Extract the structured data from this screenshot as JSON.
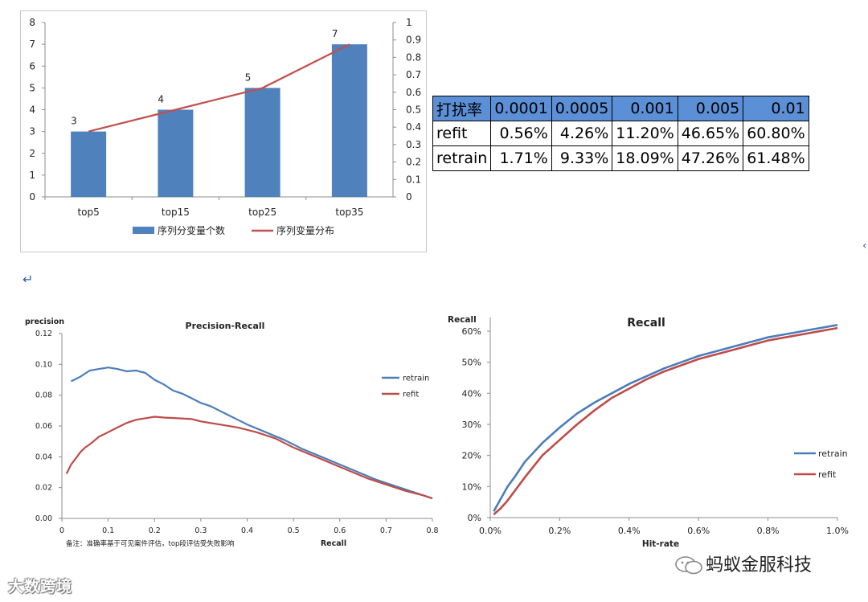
{
  "chart_data": [
    {
      "type": "bar+line",
      "categories": [
        "top5",
        "top15",
        "top25",
        "top35"
      ],
      "series": [
        {
          "name": "序列分变量个数",
          "type": "bar",
          "axis": "left",
          "values": [
            3,
            4,
            5,
            7
          ],
          "color": "#4f81bd"
        },
        {
          "name": "序列变量分布",
          "type": "line",
          "axis": "right",
          "values": [
            0.375,
            0.5,
            0.625,
            0.875
          ],
          "color": "#c0504d"
        }
      ],
      "data_labels": [
        "3",
        "4",
        "5",
        "7"
      ],
      "ylim_left": [
        0,
        8
      ],
      "ytick_labels_left": [
        "0",
        "1",
        "2",
        "3",
        "4",
        "5",
        "6",
        "7",
        "8"
      ],
      "ylim_right": [
        0,
        1
      ],
      "ytick_labels_right": [
        "0",
        "0.1",
        "0.2",
        "0.3",
        "0.4",
        "0.5",
        "0.6",
        "0.7",
        "0.8",
        "0.9",
        "1"
      ],
      "legend": "bottom"
    },
    {
      "type": "line",
      "title": "Precision-Recall",
      "xlabel": "Recall",
      "ylabel": "precision",
      "xlim": [
        0,
        0.8
      ],
      "ylim": [
        0,
        0.12
      ],
      "xtick_labels": [
        "0",
        "0.1",
        "0.2",
        "0.3",
        "0.4",
        "0.5",
        "0.6",
        "0.7",
        "0.8"
      ],
      "ytick_labels": [
        "0.00",
        "0.02",
        "0.04",
        "0.06",
        "0.08",
        "0.10",
        "0.12"
      ],
      "note": "备注：准确率基于可见案件评估，top段评估受失败影响",
      "legend": "right",
      "series": [
        {
          "name": "retrain",
          "color": "#4a7ebb",
          "x": [
            0.02,
            0.04,
            0.06,
            0.08,
            0.1,
            0.12,
            0.14,
            0.16,
            0.18,
            0.2,
            0.22,
            0.24,
            0.26,
            0.28,
            0.3,
            0.32,
            0.34,
            0.36,
            0.38,
            0.4,
            0.44,
            0.48,
            0.52,
            0.56,
            0.6,
            0.64,
            0.68,
            0.72,
            0.76,
            0.8
          ],
          "y": [
            0.089,
            0.092,
            0.096,
            0.097,
            0.098,
            0.097,
            0.0955,
            0.096,
            0.0945,
            0.09,
            0.087,
            0.083,
            0.081,
            0.078,
            0.075,
            0.073,
            0.07,
            0.067,
            0.064,
            0.061,
            0.056,
            0.051,
            0.045,
            0.04,
            0.035,
            0.03,
            0.025,
            0.021,
            0.017,
            0.013
          ]
        },
        {
          "name": "refit",
          "color": "#be4b48",
          "x": [
            0.01,
            0.02,
            0.03,
            0.04,
            0.05,
            0.06,
            0.08,
            0.1,
            0.12,
            0.14,
            0.16,
            0.18,
            0.2,
            0.22,
            0.25,
            0.28,
            0.3,
            0.34,
            0.38,
            0.42,
            0.46,
            0.5,
            0.54,
            0.58,
            0.62,
            0.66,
            0.7,
            0.74,
            0.78,
            0.8
          ],
          "y": [
            0.029,
            0.035,
            0.039,
            0.043,
            0.046,
            0.048,
            0.053,
            0.056,
            0.059,
            0.062,
            0.064,
            0.065,
            0.066,
            0.0655,
            0.065,
            0.0645,
            0.063,
            0.061,
            0.059,
            0.056,
            0.052,
            0.046,
            0.041,
            0.036,
            0.031,
            0.026,
            0.022,
            0.018,
            0.015,
            0.013
          ]
        }
      ]
    },
    {
      "type": "line",
      "title": "Recall",
      "xlabel": "Hit-rate",
      "ylabel": "Recall",
      "xlim": [
        0,
        1
      ],
      "ylim": [
        0,
        60
      ],
      "xtick_labels": [
        "0.0%",
        "0.2%",
        "0.4%",
        "0.6%",
        "0.8%",
        "1.0%"
      ],
      "ytick_labels": [
        "0%",
        "10%",
        "20%",
        "30%",
        "40%",
        "50%",
        "60%"
      ],
      "legend": "right",
      "series": [
        {
          "name": "retrain",
          "color": "#4a7ebb",
          "x": [
            0.01,
            0.03,
            0.05,
            0.07,
            0.1,
            0.15,
            0.2,
            0.25,
            0.3,
            0.35,
            0.4,
            0.45,
            0.5,
            0.55,
            0.6,
            0.65,
            0.7,
            0.75,
            0.8,
            0.85,
            0.9,
            0.95,
            1.0
          ],
          "y": [
            2,
            6,
            10,
            13,
            18,
            24,
            29,
            33.5,
            37,
            40,
            43,
            45.5,
            48,
            50,
            52,
            53.5,
            55,
            56.5,
            58,
            59,
            60,
            61,
            62
          ]
        },
        {
          "name": "refit",
          "color": "#be4b48",
          "x": [
            0.01,
            0.03,
            0.05,
            0.07,
            0.1,
            0.15,
            0.2,
            0.25,
            0.3,
            0.35,
            0.4,
            0.45,
            0.5,
            0.55,
            0.6,
            0.65,
            0.7,
            0.75,
            0.8,
            0.85,
            0.9,
            0.95,
            1.0
          ],
          "y": [
            1,
            3,
            5.5,
            8.5,
            13,
            20,
            25,
            30,
            34.5,
            38.5,
            41.5,
            44.5,
            47,
            49,
            51,
            52.5,
            54,
            55.5,
            57,
            58,
            59,
            60,
            61
          ]
        }
      ]
    }
  ],
  "table": {
    "header": [
      "打扰率",
      "0.0001",
      "0.0005",
      "0.001",
      "0.005",
      "0.01"
    ],
    "rows": [
      [
        "refit",
        "0.56%",
        "4.26%",
        "11.20%",
        "46.65%",
        "60.80%"
      ],
      [
        "retrain",
        "1.71%",
        "9.33%",
        "18.09%",
        "47.26%",
        "61.48%"
      ]
    ]
  },
  "marks": {
    "return_symbol": "↵",
    "edge_symbol": "‹"
  },
  "watermarks": {
    "left": "大数跨境",
    "right": "蚂蚁金服科技"
  }
}
